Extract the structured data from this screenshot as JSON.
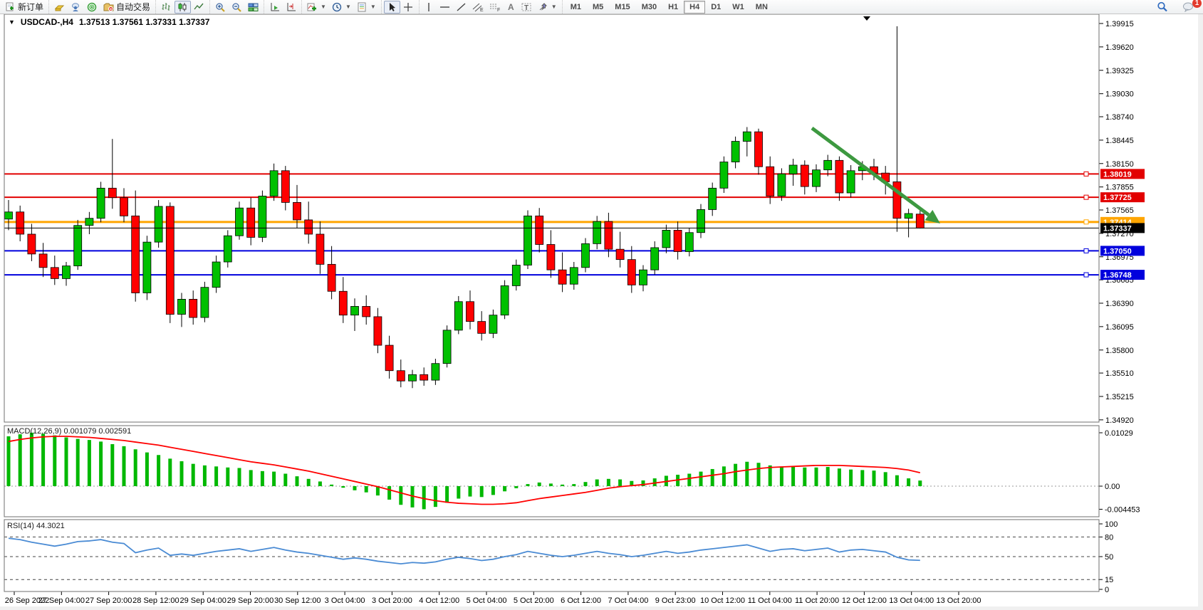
{
  "toolbar": {
    "new_order_label": "新订单",
    "autotrading_label": "自动交易",
    "timeframes": [
      "M1",
      "M5",
      "M15",
      "M30",
      "H1",
      "H4",
      "D1",
      "W1",
      "MN"
    ],
    "active_timeframe": "H4",
    "notification_count": "1"
  },
  "chart": {
    "title": "USDCAD-,H4",
    "ohlc": "1.37513 1.37561 1.37331 1.37337"
  },
  "chart_data": {
    "type": "candlestick",
    "symbol": "USDCAD",
    "timeframe": "H4",
    "current_price": 1.37337,
    "current_price_label": "1.37337",
    "price_axis_ticks": [
      "1.39915",
      "1.39620",
      "1.39325",
      "1.39030",
      "1.38740",
      "1.38445",
      "1.38150",
      "1.37855",
      "1.37565",
      "1.37270",
      "1.36975",
      "1.36685",
      "1.36390",
      "1.36095",
      "1.35800",
      "1.35510",
      "1.35215",
      "1.34920"
    ],
    "time_axis_labels": [
      "26 Sep 2022",
      "27 Sep 04:00",
      "27 Sep 20:00",
      "28 Sep 12:00",
      "29 Sep 04:00",
      "29 Sep 20:00",
      "30 Sep 12:00",
      "3 Oct 04:00",
      "3 Oct 20:00",
      "4 Oct 12:00",
      "5 Oct 04:00",
      "5 Oct 20:00",
      "6 Oct 12:00",
      "7 Oct 04:00",
      "9 Oct 23:00",
      "10 Oct 12:00",
      "11 Oct 04:00",
      "11 Oct 20:00",
      "12 Oct 12:00",
      "13 Oct 04:00",
      "13 Oct 20:00"
    ],
    "hlines": [
      {
        "price": 1.38019,
        "label": "1.38019",
        "color": "#e20000",
        "width": 2
      },
      {
        "price": 1.37725,
        "label": "1.37725",
        "color": "#e20000",
        "width": 2
      },
      {
        "price": 1.37414,
        "label": "1.37414",
        "color": "#ffa500",
        "width": 3
      },
      {
        "price": 1.3705,
        "label": "1.37050",
        "color": "#0000dd",
        "width": 2
      },
      {
        "price": 1.36748,
        "label": "1.36748",
        "color": "#0000dd",
        "width": 2
      }
    ],
    "colors": {
      "bull": "#00c000",
      "bear": "#ff0000",
      "outline": "#000000",
      "macd_hist": "#00b800",
      "macd_signal": "#ff0000",
      "rsi_line": "#4a8bd4",
      "arrow": "#3d9940"
    },
    "candles": [
      [
        1.3745,
        1.3769,
        1.3731,
        1.3754
      ],
      [
        1.3754,
        1.3762,
        1.3717,
        1.3726
      ],
      [
        1.3726,
        1.3739,
        1.3692,
        1.3701
      ],
      [
        1.3701,
        1.3715,
        1.3672,
        1.3684
      ],
      [
        1.3684,
        1.3699,
        1.3662,
        1.367
      ],
      [
        1.367,
        1.3691,
        1.3661,
        1.3686
      ],
      [
        1.3686,
        1.3744,
        1.3681,
        1.3737
      ],
      [
        1.3737,
        1.3754,
        1.3726,
        1.3746
      ],
      [
        1.3746,
        1.3792,
        1.3741,
        1.3784
      ],
      [
        1.3784,
        1.3846,
        1.3758,
        1.3772
      ],
      [
        1.3772,
        1.3784,
        1.3741,
        1.3749
      ],
      [
        1.3749,
        1.3781,
        1.3641,
        1.3652
      ],
      [
        1.3652,
        1.3724,
        1.3643,
        1.3716
      ],
      [
        1.3716,
        1.3769,
        1.3709,
        1.3761
      ],
      [
        1.3761,
        1.3766,
        1.3614,
        1.3625
      ],
      [
        1.3625,
        1.3652,
        1.3609,
        1.3644
      ],
      [
        1.3644,
        1.3655,
        1.3612,
        1.3621
      ],
      [
        1.3621,
        1.3666,
        1.3615,
        1.3659
      ],
      [
        1.3659,
        1.3699,
        1.3652,
        1.3691
      ],
      [
        1.3691,
        1.3731,
        1.3684,
        1.3724
      ],
      [
        1.3724,
        1.3767,
        1.3719,
        1.3759
      ],
      [
        1.3759,
        1.3772,
        1.3712,
        1.3722
      ],
      [
        1.3722,
        1.3781,
        1.3716,
        1.3774
      ],
      [
        1.3774,
        1.3815,
        1.3768,
        1.3806
      ],
      [
        1.3806,
        1.3812,
        1.3756,
        1.3766
      ],
      [
        1.3766,
        1.3788,
        1.3734,
        1.3744
      ],
      [
        1.3744,
        1.3767,
        1.3714,
        1.3726
      ],
      [
        1.3726,
        1.3742,
        1.3676,
        1.3688
      ],
      [
        1.3688,
        1.3711,
        1.3644,
        1.3654
      ],
      [
        1.3654,
        1.3672,
        1.3614,
        1.3624
      ],
      [
        1.3624,
        1.3645,
        1.3604,
        1.3635
      ],
      [
        1.3635,
        1.3649,
        1.3612,
        1.3622
      ],
      [
        1.3622,
        1.3633,
        1.3576,
        1.3586
      ],
      [
        1.3586,
        1.3598,
        1.3544,
        1.3554
      ],
      [
        1.3554,
        1.3568,
        1.3533,
        1.3541
      ],
      [
        1.3541,
        1.3555,
        1.3532,
        1.3549
      ],
      [
        1.3549,
        1.3558,
        1.3535,
        1.3542
      ],
      [
        1.3542,
        1.3569,
        1.3536,
        1.3563
      ],
      [
        1.3563,
        1.3611,
        1.3558,
        1.3605
      ],
      [
        1.3605,
        1.3648,
        1.36,
        1.3641
      ],
      [
        1.3641,
        1.3655,
        1.3606,
        1.3616
      ],
      [
        1.3616,
        1.3629,
        1.3592,
        1.3601
      ],
      [
        1.3601,
        1.3631,
        1.3595,
        1.3624
      ],
      [
        1.3624,
        1.3668,
        1.3619,
        1.3661
      ],
      [
        1.3661,
        1.3694,
        1.3655,
        1.3687
      ],
      [
        1.3687,
        1.3756,
        1.3682,
        1.3749
      ],
      [
        1.3749,
        1.3759,
        1.3703,
        1.3713
      ],
      [
        1.3713,
        1.3731,
        1.3671,
        1.3681
      ],
      [
        1.3681,
        1.3703,
        1.3653,
        1.3663
      ],
      [
        1.3663,
        1.3691,
        1.3656,
        1.3684
      ],
      [
        1.3684,
        1.3721,
        1.3678,
        1.3714
      ],
      [
        1.3714,
        1.3749,
        1.3707,
        1.3742
      ],
      [
        1.3742,
        1.3753,
        1.3697,
        1.3707
      ],
      [
        1.3707,
        1.3729,
        1.3684,
        1.3694
      ],
      [
        1.3694,
        1.3711,
        1.3652,
        1.3662
      ],
      [
        1.3662,
        1.3687,
        1.3654,
        1.3681
      ],
      [
        1.3681,
        1.3717,
        1.3675,
        1.3709
      ],
      [
        1.3709,
        1.3738,
        1.3702,
        1.3731
      ],
      [
        1.3731,
        1.3742,
        1.3694,
        1.3704
      ],
      [
        1.3704,
        1.3734,
        1.3698,
        1.3728
      ],
      [
        1.3728,
        1.3764,
        1.3721,
        1.3757
      ],
      [
        1.3757,
        1.3791,
        1.3749,
        1.3784
      ],
      [
        1.3784,
        1.3824,
        1.3778,
        1.3817
      ],
      [
        1.3817,
        1.3849,
        1.3809,
        1.3843
      ],
      [
        1.3843,
        1.3861,
        1.3824,
        1.3855
      ],
      [
        1.3855,
        1.3859,
        1.3801,
        1.3811
      ],
      [
        1.3811,
        1.3824,
        1.3764,
        1.3774
      ],
      [
        1.3774,
        1.3809,
        1.3768,
        1.3802
      ],
      [
        1.3802,
        1.3821,
        1.3787,
        1.3813
      ],
      [
        1.3813,
        1.3819,
        1.3776,
        1.3786
      ],
      [
        1.3786,
        1.3814,
        1.3779,
        1.3807
      ],
      [
        1.3807,
        1.3826,
        1.3799,
        1.3819
      ],
      [
        1.3819,
        1.3824,
        1.3768,
        1.3778
      ],
      [
        1.3778,
        1.3813,
        1.3772,
        1.3806
      ],
      [
        1.3806,
        1.3818,
        1.3794,
        1.3811
      ],
      [
        1.3811,
        1.3821,
        1.3794,
        1.3803
      ],
      [
        1.3803,
        1.3812,
        1.3776,
        1.3792
      ],
      [
        1.3792,
        1.3988,
        1.3729,
        1.3746
      ],
      [
        1.3746,
        1.3758,
        1.3722,
        1.3752
      ],
      [
        1.37513,
        1.37561,
        1.37331,
        1.37337
      ]
    ],
    "macd": {
      "label": "MACD(12,26,9) 0.001079 0.002591",
      "axis_labels": [
        "0.01029",
        "0.00",
        "-0.004453"
      ],
      "axis_values": [
        0.01029,
        0,
        -0.004453
      ],
      "histogram": [
        0.0096,
        0.01,
        0.0103,
        0.0101,
        0.0098,
        0.0094,
        0.0091,
        0.0089,
        0.0086,
        0.0081,
        0.0077,
        0.0071,
        0.0065,
        0.006,
        0.0053,
        0.0048,
        0.0043,
        0.004,
        0.0038,
        0.0036,
        0.0035,
        0.0031,
        0.0029,
        0.0028,
        0.0024,
        0.0019,
        0.0014,
        0.0009,
        0.0003,
        -0.0003,
        -0.0008,
        -0.0012,
        -0.0018,
        -0.0026,
        -0.0036,
        -0.0041,
        -0.00445,
        -0.004,
        -0.0032,
        -0.0024,
        -0.002,
        -0.0021,
        -0.0017,
        -0.001,
        -0.0004,
        0.0004,
        0.0007,
        0.0005,
        0.0003,
        0.0004,
        0.0008,
        0.0013,
        0.0014,
        0.0013,
        0.001,
        0.0011,
        0.0015,
        0.002,
        0.0022,
        0.0024,
        0.0028,
        0.0033,
        0.0038,
        0.0043,
        0.0047,
        0.0045,
        0.004,
        0.0038,
        0.0038,
        0.0036,
        0.0036,
        0.0037,
        0.0034,
        0.0032,
        0.0031,
        0.003,
        0.0027,
        0.0021,
        0.0015,
        0.00108
      ],
      "signal": [
        0.0086,
        0.009,
        0.0093,
        0.0095,
        0.0096,
        0.0096,
        0.0095,
        0.0094,
        0.0092,
        0.009,
        0.0088,
        0.0085,
        0.0082,
        0.0079,
        0.0075,
        0.0071,
        0.0067,
        0.0063,
        0.0059,
        0.0055,
        0.0051,
        0.0047,
        0.0044,
        0.0041,
        0.0037,
        0.0033,
        0.0029,
        0.0024,
        0.0019,
        0.0014,
        0.0009,
        0.0004,
        -0.0001,
        -0.0007,
        -0.0013,
        -0.0019,
        -0.0024,
        -0.0028,
        -0.0031,
        -0.0033,
        -0.0034,
        -0.0035,
        -0.0035,
        -0.0034,
        -0.0032,
        -0.0028,
        -0.0024,
        -0.0021,
        -0.0018,
        -0.0015,
        -0.0012,
        -0.0008,
        -0.0004,
        -0.0001,
        0.0001,
        0.0003,
        0.0006,
        0.0009,
        0.0012,
        0.0015,
        0.0018,
        0.0021,
        0.0024,
        0.0028,
        0.0031,
        0.0034,
        0.0036,
        0.0037,
        0.0038,
        0.0039,
        0.004,
        0.004,
        0.004,
        0.0039,
        0.0038,
        0.0037,
        0.0036,
        0.0034,
        0.0031,
        0.00259
      ]
    },
    "rsi": {
      "label": "RSI(14) 44.3021",
      "levels": [
        {
          "value": 100,
          "label": "100",
          "dashed": false
        },
        {
          "value": 80,
          "label": "80",
          "dashed": true
        },
        {
          "value": 50,
          "label": "50",
          "dashed": true
        },
        {
          "value": 15,
          "label": "15",
          "dashed": true
        },
        {
          "value": 0,
          "label": "0",
          "dashed": false
        }
      ],
      "values": [
        78,
        76,
        72,
        69,
        66,
        69,
        73,
        74,
        76,
        72,
        70,
        56,
        60,
        63,
        52,
        54,
        52,
        55,
        58,
        60,
        62,
        58,
        61,
        64,
        60,
        57,
        55,
        52,
        49,
        46,
        48,
        46,
        43,
        41,
        39,
        41,
        40,
        42,
        46,
        49,
        47,
        44,
        46,
        50,
        53,
        58,
        55,
        52,
        50,
        52,
        55,
        58,
        55,
        53,
        50,
        52,
        55,
        58,
        55,
        57,
        60,
        62,
        64,
        66,
        68,
        63,
        58,
        61,
        62,
        59,
        61,
        63,
        57,
        60,
        61,
        59,
        57,
        49,
        45,
        44.3
      ]
    },
    "annotation_arrow": {
      "from": [
        1140,
        180
      ],
      "tip": [
        1320,
        314
      ]
    }
  }
}
